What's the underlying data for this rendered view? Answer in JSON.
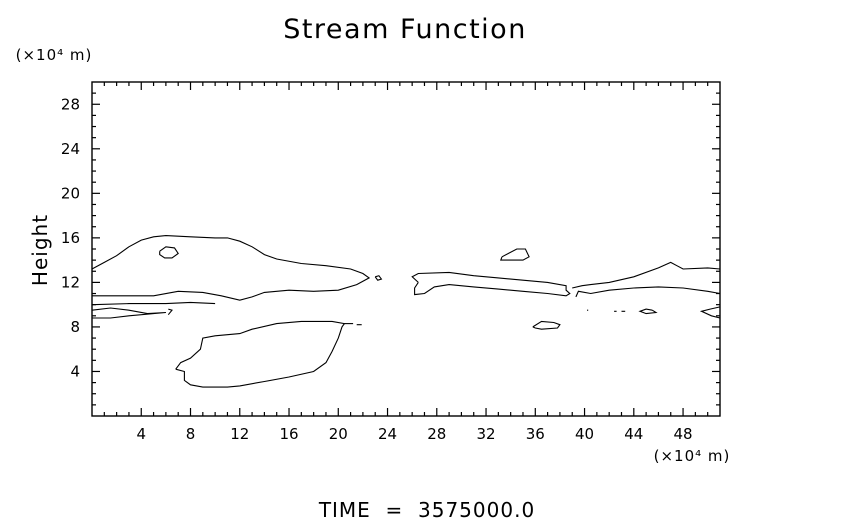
{
  "chart_data": {
    "type": "contour",
    "title": "Stream Function",
    "ylabel": "Height",
    "y_unit_label": "(×10⁴ m)",
    "x_unit_label": "(×10⁴ m)",
    "footer": "TIME  =  3575000.0",
    "xlim": [
      0,
      51
    ],
    "ylim": [
      0,
      30
    ],
    "x_ticks": [
      4,
      8,
      12,
      16,
      20,
      24,
      28,
      32,
      36,
      40,
      44,
      48
    ],
    "y_ticks": [
      4,
      8,
      12,
      16,
      20,
      24,
      28
    ],
    "grid": false,
    "contours": [
      [
        [
          0,
          13.2
        ],
        [
          1,
          13.8
        ],
        [
          2,
          14.4
        ],
        [
          3,
          15.2
        ],
        [
          4,
          15.8
        ],
        [
          5,
          16.1
        ],
        [
          6,
          16.2
        ],
        [
          8,
          16.1
        ],
        [
          10,
          16.0
        ],
        [
          11,
          16.0
        ],
        [
          12,
          15.7
        ],
        [
          13,
          15.2
        ],
        [
          14,
          14.5
        ],
        [
          15,
          14.1
        ],
        [
          17,
          13.7
        ],
        [
          19,
          13.5
        ],
        [
          21,
          13.2
        ],
        [
          22,
          12.8
        ],
        [
          22.5,
          12.4
        ],
        [
          21.5,
          11.8
        ],
        [
          20,
          11.3
        ],
        [
          18,
          11.2
        ],
        [
          16,
          11.3
        ],
        [
          14,
          11.1
        ],
        [
          13,
          10.7
        ],
        [
          12,
          10.4
        ],
        [
          10.5,
          10.8
        ],
        [
          9,
          11.1
        ],
        [
          7,
          11.2
        ],
        [
          5,
          10.8
        ],
        [
          3,
          10.8
        ],
        [
          1,
          10.8
        ],
        [
          0,
          10.8
        ]
      ],
      [
        [
          5.5,
          14.8
        ],
        [
          6,
          15.2
        ],
        [
          6.7,
          15.1
        ],
        [
          7,
          14.6
        ],
        [
          6.5,
          14.2
        ],
        [
          5.9,
          14.2
        ],
        [
          5.5,
          14.5
        ],
        [
          5.5,
          14.8
        ]
      ],
      [
        [
          0,
          9.5
        ],
        [
          1.5,
          9.7
        ],
        [
          3,
          9.5
        ],
        [
          4.5,
          9.2
        ],
        [
          6,
          9.3
        ],
        [
          3,
          9.0
        ],
        [
          1.5,
          8.8
        ],
        [
          0,
          8.8
        ]
      ],
      [
        [
          0,
          10.0
        ],
        [
          3,
          10.1
        ],
        [
          6,
          10.1
        ],
        [
          8,
          10.2
        ],
        [
          10,
          10.1
        ]
      ],
      [
        [
          6.2,
          9.1
        ],
        [
          6.5,
          9.5
        ],
        [
          6.2,
          9.6
        ]
      ],
      [
        [
          6.8,
          4.2
        ],
        [
          7.5,
          4.0
        ],
        [
          7.5,
          3.2
        ],
        [
          8,
          2.8
        ],
        [
          9,
          2.6
        ],
        [
          11,
          2.6
        ],
        [
          12,
          2.7
        ],
        [
          14,
          3.1
        ],
        [
          16,
          3.5
        ],
        [
          18,
          4.0
        ],
        [
          19,
          4.8
        ],
        [
          19.5,
          5.8
        ],
        [
          20,
          7.0
        ],
        [
          20.3,
          8.0
        ],
        [
          20.5,
          8.3
        ],
        [
          19.5,
          8.5
        ],
        [
          17,
          8.5
        ],
        [
          15,
          8.3
        ],
        [
          13,
          7.8
        ],
        [
          12,
          7.4
        ],
        [
          10,
          7.2
        ],
        [
          9,
          7.0
        ],
        [
          8.8,
          6.0
        ],
        [
          8,
          5.2
        ],
        [
          7.2,
          4.8
        ],
        [
          6.8,
          4.2
        ]
      ],
      [
        [
          20.5,
          8.3
        ],
        [
          21.2,
          8.3
        ]
      ],
      [
        [
          21.5,
          8.2
        ],
        [
          21.9,
          8.2
        ]
      ],
      [
        [
          23.0,
          12.5
        ],
        [
          23.2,
          12.2
        ],
        [
          23.5,
          12.3
        ],
        [
          23.3,
          12.6
        ],
        [
          23.0,
          12.5
        ]
      ],
      [
        [
          26.5,
          12.0
        ],
        [
          26,
          12.5
        ],
        [
          26.5,
          12.8
        ],
        [
          29,
          12.9
        ],
        [
          31,
          12.6
        ],
        [
          33,
          12.4
        ],
        [
          35,
          12.2
        ],
        [
          37,
          12.0
        ],
        [
          38.5,
          11.7
        ],
        [
          38.5,
          11.3
        ],
        [
          38.8,
          11.0
        ],
        [
          38.5,
          10.8
        ],
        [
          37,
          11.0
        ],
        [
          35,
          11.2
        ],
        [
          33,
          11.4
        ],
        [
          31,
          11.6
        ],
        [
          29,
          11.8
        ],
        [
          27.8,
          11.6
        ],
        [
          27,
          11.0
        ],
        [
          26.2,
          10.9
        ],
        [
          26.2,
          11.5
        ],
        [
          26.5,
          12.0
        ]
      ],
      [
        [
          33.3,
          14.3
        ],
        [
          34.5,
          15.0
        ],
        [
          35.2,
          15.0
        ],
        [
          35.5,
          14.3
        ],
        [
          35.0,
          14.0
        ],
        [
          34.0,
          14.0
        ],
        [
          33.2,
          14.0
        ],
        [
          33.3,
          14.3
        ]
      ],
      [
        [
          35.8,
          8.0
        ],
        [
          36.5,
          8.5
        ],
        [
          37.5,
          8.4
        ],
        [
          38.0,
          8.2
        ],
        [
          37.8,
          7.9
        ],
        [
          36.5,
          7.8
        ],
        [
          36.0,
          7.9
        ],
        [
          35.8,
          8.0
        ]
      ],
      [
        [
          39.0,
          11.5
        ],
        [
          39.8,
          11.7
        ],
        [
          40.5,
          11.8
        ],
        [
          42,
          12.0
        ],
        [
          44,
          12.5
        ],
        [
          46,
          13.3
        ],
        [
          47,
          13.8
        ],
        [
          47.5,
          13.5
        ],
        [
          48,
          13.2
        ],
        [
          50,
          13.3
        ],
        [
          51,
          13.2
        ]
      ],
      [
        [
          39.3,
          10.7
        ],
        [
          39.5,
          11.2
        ],
        [
          40.5,
          11.0
        ],
        [
          42,
          11.3
        ],
        [
          44,
          11.5
        ],
        [
          46,
          11.6
        ],
        [
          48,
          11.5
        ],
        [
          50,
          11.2
        ],
        [
          51,
          11.0
        ]
      ],
      [
        [
          45.5,
          9.5
        ],
        [
          45.8,
          9.3
        ],
        [
          45.0,
          9.2
        ],
        [
          44.5,
          9.4
        ],
        [
          45.0,
          9.6
        ],
        [
          45.5,
          9.5
        ]
      ],
      [
        [
          51,
          9.8
        ],
        [
          50.2,
          9.6
        ],
        [
          49.5,
          9.4
        ],
        [
          50.3,
          9.0
        ],
        [
          51,
          8.8
        ]
      ],
      [
        [
          40.2,
          9.5
        ],
        [
          40.3,
          9.5
        ]
      ],
      [
        [
          42.4,
          9.4
        ],
        [
          42.6,
          9.4
        ]
      ],
      [
        [
          43.0,
          9.4
        ],
        [
          43.3,
          9.4
        ]
      ]
    ]
  }
}
